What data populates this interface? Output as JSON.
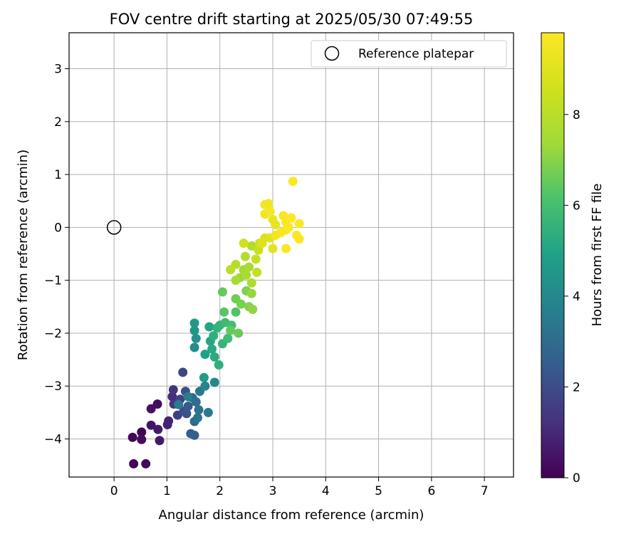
{
  "chart_data": {
    "type": "scatter",
    "title": "FOV centre drift starting at 2025/05/30 07:49:55",
    "xlabel": "Angular distance from reference (arcmin)",
    "ylabel": "Rotation from reference (arcmin)",
    "xlim": [
      -0.85,
      7.55
    ],
    "ylim": [
      -4.72,
      3.68
    ],
    "x_ticks": [
      0,
      1,
      2,
      3,
      4,
      5,
      6,
      7
    ],
    "y_ticks": [
      -4,
      -3,
      -2,
      -1,
      0,
      1,
      2,
      3
    ],
    "grid": true,
    "legend": {
      "placement": "top-right",
      "entries": [
        "Reference platepar"
      ]
    },
    "reference_point": {
      "x": 0,
      "y": 0
    },
    "colorbar": {
      "label": "Hours from first FF file",
      "ticks": [
        0,
        2,
        4,
        6,
        8
      ],
      "range": [
        0,
        9.8
      ],
      "colormap": "viridis"
    },
    "points": [
      {
        "x": 0.37,
        "y": -4.47,
        "c": 0.1
      },
      {
        "x": 0.6,
        "y": -4.47,
        "c": 0.2
      },
      {
        "x": 0.35,
        "y": -3.97,
        "c": 0.2
      },
      {
        "x": 0.52,
        "y": -3.87,
        "c": 0.1
      },
      {
        "x": 0.52,
        "y": -4.01,
        "c": 0.3
      },
      {
        "x": 0.7,
        "y": -3.43,
        "c": 0.4
      },
      {
        "x": 0.7,
        "y": -3.74,
        "c": 0.5
      },
      {
        "x": 0.82,
        "y": -3.34,
        "c": 0.3
      },
      {
        "x": 0.83,
        "y": -3.82,
        "c": 0.6
      },
      {
        "x": 0.86,
        "y": -4.03,
        "c": 0.6
      },
      {
        "x": 1.01,
        "y": -3.73,
        "c": 0.8
      },
      {
        "x": 1.03,
        "y": -3.66,
        "c": 0.9
      },
      {
        "x": 1.1,
        "y": -3.2,
        "c": 1.1
      },
      {
        "x": 1.12,
        "y": -3.07,
        "c": 1.3
      },
      {
        "x": 1.13,
        "y": -3.34,
        "c": 1.4
      },
      {
        "x": 1.2,
        "y": -3.55,
        "c": 1.6
      },
      {
        "x": 1.25,
        "y": -3.25,
        "c": 1.7
      },
      {
        "x": 1.3,
        "y": -2.74,
        "c": 1.8
      },
      {
        "x": 1.32,
        "y": -3.47,
        "c": 2.0
      },
      {
        "x": 1.35,
        "y": -3.1,
        "c": 2.1
      },
      {
        "x": 1.37,
        "y": -3.52,
        "c": 2.2
      },
      {
        "x": 1.4,
        "y": -3.38,
        "c": 2.4
      },
      {
        "x": 1.45,
        "y": -3.9,
        "c": 2.5
      },
      {
        "x": 1.52,
        "y": -3.93,
        "c": 2.6
      },
      {
        "x": 1.48,
        "y": -3.22,
        "c": 2.8
      },
      {
        "x": 1.52,
        "y": -3.67,
        "c": 2.9
      },
      {
        "x": 1.55,
        "y": -3.3,
        "c": 3.0
      },
      {
        "x": 1.6,
        "y": -3.45,
        "c": 3.2
      },
      {
        "x": 1.58,
        "y": -3.6,
        "c": 3.3
      },
      {
        "x": 1.62,
        "y": -3.1,
        "c": 3.4
      },
      {
        "x": 1.22,
        "y": -3.35,
        "c": 3.5
      },
      {
        "x": 1.4,
        "y": -3.2,
        "c": 3.6
      },
      {
        "x": 1.78,
        "y": -3.5,
        "c": 3.5
      },
      {
        "x": 1.72,
        "y": -3.0,
        "c": 3.9
      },
      {
        "x": 1.9,
        "y": -2.93,
        "c": 4.0
      },
      {
        "x": 1.52,
        "y": -2.27,
        "c": 4.2
      },
      {
        "x": 1.55,
        "y": -2.1,
        "c": 4.4
      },
      {
        "x": 1.52,
        "y": -1.95,
        "c": 4.5
      },
      {
        "x": 1.52,
        "y": -1.81,
        "c": 4.6
      },
      {
        "x": 1.7,
        "y": -2.84,
        "c": 4.8
      },
      {
        "x": 1.72,
        "y": -2.4,
        "c": 4.9
      },
      {
        "x": 1.8,
        "y": -1.88,
        "c": 5.0
      },
      {
        "x": 1.82,
        "y": -2.15,
        "c": 5.1
      },
      {
        "x": 1.85,
        "y": -2.3,
        "c": 5.2
      },
      {
        "x": 1.9,
        "y": -2.45,
        "c": 5.3
      },
      {
        "x": 1.88,
        "y": -2.05,
        "c": 5.4
      },
      {
        "x": 1.95,
        "y": -1.9,
        "c": 5.5
      },
      {
        "x": 2.0,
        "y": -1.85,
        "c": 5.6
      },
      {
        "x": 1.98,
        "y": -2.6,
        "c": 5.4
      },
      {
        "x": 2.05,
        "y": -2.2,
        "c": 5.6
      },
      {
        "x": 2.1,
        "y": -1.8,
        "c": 5.8
      },
      {
        "x": 2.15,
        "y": -2.1,
        "c": 5.9
      },
      {
        "x": 2.22,
        "y": -1.85,
        "c": 6.0
      },
      {
        "x": 2.3,
        "y": -1.6,
        "c": 6.2
      },
      {
        "x": 2.08,
        "y": -1.6,
        "c": 6.3
      },
      {
        "x": 2.05,
        "y": -1.22,
        "c": 6.5
      },
      {
        "x": 2.2,
        "y": -1.95,
        "c": 6.5
      },
      {
        "x": 2.35,
        "y": -2.0,
        "c": 6.6
      },
      {
        "x": 2.3,
        "y": -1.35,
        "c": 6.7
      },
      {
        "x": 2.4,
        "y": -1.45,
        "c": 6.8
      },
      {
        "x": 2.5,
        "y": -1.2,
        "c": 6.9
      },
      {
        "x": 2.55,
        "y": -1.5,
        "c": 7.0
      },
      {
        "x": 2.62,
        "y": -1.55,
        "c": 7.1
      },
      {
        "x": 2.6,
        "y": -1.25,
        "c": 7.2
      },
      {
        "x": 2.38,
        "y": -0.95,
        "c": 7.3
      },
      {
        "x": 2.45,
        "y": -0.8,
        "c": 7.4
      },
      {
        "x": 2.3,
        "y": -1.0,
        "c": 7.5
      },
      {
        "x": 2.5,
        "y": -0.9,
        "c": 7.6
      },
      {
        "x": 2.55,
        "y": -0.75,
        "c": 7.6
      },
      {
        "x": 2.6,
        "y": -0.35,
        "c": 7.7
      },
      {
        "x": 2.48,
        "y": -0.55,
        "c": 7.8
      },
      {
        "x": 2.3,
        "y": -0.7,
        "c": 7.9
      },
      {
        "x": 2.2,
        "y": -0.8,
        "c": 8.0
      },
      {
        "x": 2.6,
        "y": -1.05,
        "c": 7.7
      },
      {
        "x": 2.7,
        "y": -0.85,
        "c": 8.2
      },
      {
        "x": 2.68,
        "y": -0.6,
        "c": 8.3
      },
      {
        "x": 2.73,
        "y": -0.43,
        "c": 8.4
      },
      {
        "x": 2.75,
        "y": -0.3,
        "c": 8.5
      },
      {
        "x": 2.45,
        "y": -0.3,
        "c": 8.6
      },
      {
        "x": 2.85,
        "y": -0.2,
        "c": 8.8
      },
      {
        "x": 2.8,
        "y": -0.3,
        "c": 8.9
      },
      {
        "x": 2.95,
        "y": -0.2,
        "c": 9.0
      },
      {
        "x": 3.0,
        "y": -0.4,
        "c": 9.1
      },
      {
        "x": 3.05,
        "y": 0.05,
        "c": 9.2
      },
      {
        "x": 3.0,
        "y": 0.15,
        "c": 9.3
      },
      {
        "x": 2.85,
        "y": 0.25,
        "c": 9.4
      },
      {
        "x": 2.85,
        "y": 0.43,
        "c": 9.5
      },
      {
        "x": 2.92,
        "y": 0.45,
        "c": 9.5
      },
      {
        "x": 2.95,
        "y": 0.3,
        "c": 9.6
      },
      {
        "x": 3.2,
        "y": 0.22,
        "c": 9.6
      },
      {
        "x": 3.25,
        "y": 0.1,
        "c": 9.7
      },
      {
        "x": 3.25,
        "y": -0.05,
        "c": 9.7
      },
      {
        "x": 3.3,
        "y": 0.0,
        "c": 9.8
      },
      {
        "x": 3.35,
        "y": 0.18,
        "c": 9.8
      },
      {
        "x": 3.38,
        "y": 0.87,
        "c": 9.8
      },
      {
        "x": 3.45,
        "y": -0.15,
        "c": 9.8
      },
      {
        "x": 3.5,
        "y": 0.07,
        "c": 9.8
      },
      {
        "x": 3.5,
        "y": -0.22,
        "c": 9.8
      },
      {
        "x": 3.25,
        "y": -0.4,
        "c": 9.7
      },
      {
        "x": 3.15,
        "y": -0.1,
        "c": 9.6
      },
      {
        "x": 3.05,
        "y": -0.15,
        "c": 9.5
      }
    ]
  }
}
